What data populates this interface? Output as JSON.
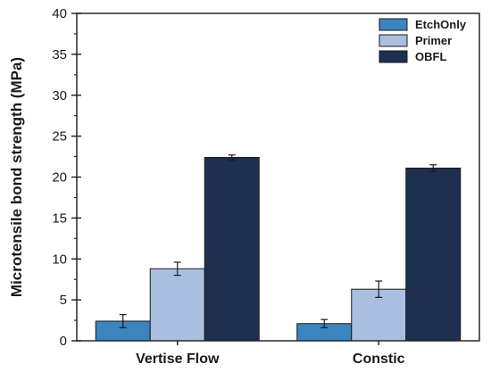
{
  "chart_data": {
    "type": "bar",
    "categories": [
      "Vertise Flow",
      "Constic"
    ],
    "series": [
      {
        "name": "EtchOnly",
        "values": [
          2.4,
          2.1
        ],
        "errors": [
          0.8,
          0.5
        ],
        "color": "#3a85bf"
      },
      {
        "name": "Primer",
        "values": [
          8.8,
          6.3
        ],
        "errors": [
          0.8,
          1.0
        ],
        "color": "#aabfe0"
      },
      {
        "name": "OBFL",
        "values": [
          22.4,
          21.1
        ],
        "errors": [
          0.3,
          0.4
        ],
        "color": "#1e2f4f"
      }
    ],
    "title": "",
    "xlabel": "",
    "ylabel": "Microtensile bond strength (MPa)",
    "ylim": [
      0,
      40
    ],
    "yticks": [
      0,
      5,
      10,
      15,
      20,
      25,
      30,
      35,
      40
    ],
    "grid": false,
    "legend_position": "top-right"
  }
}
